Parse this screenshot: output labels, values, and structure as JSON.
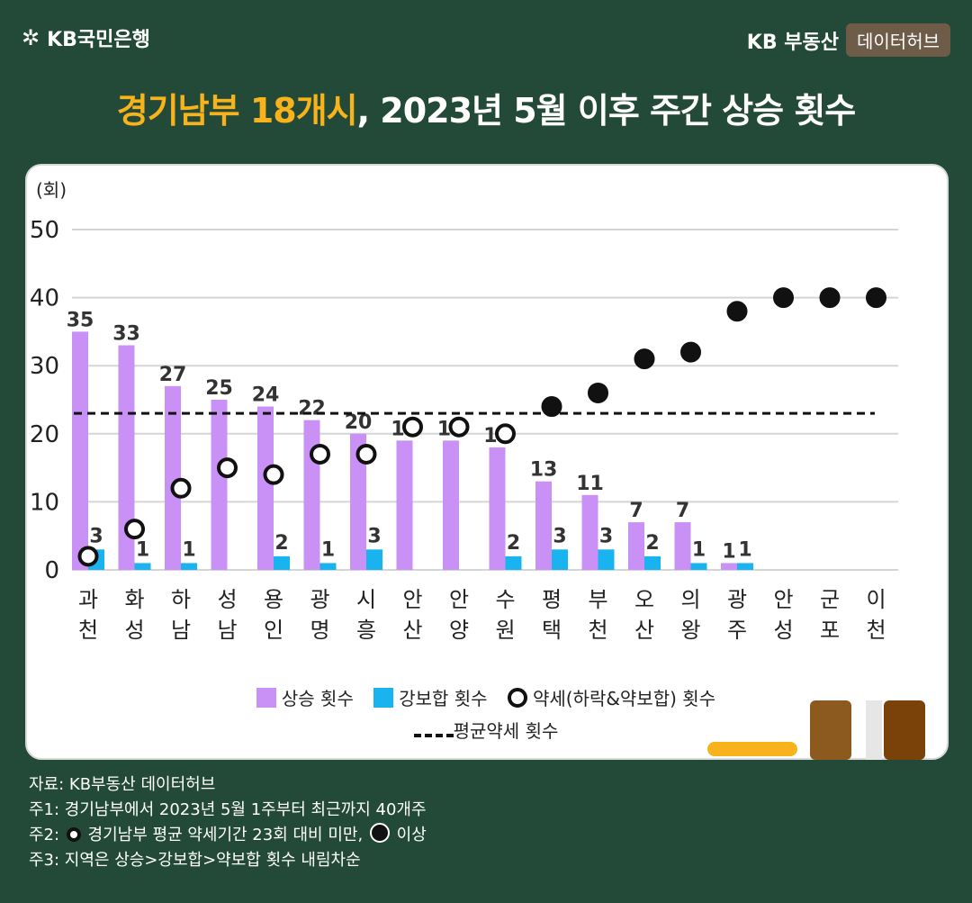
{
  "header": {
    "bank_logo": "KB국민은행",
    "brand_kb": "KB 부동산",
    "brand_hub": "데이터허브",
    "title_highlight": "경기남부 18개시",
    "title_rest": ", 2023년 5월 이후 주간 상승 횟수"
  },
  "colors": {
    "rise": "#c990f6",
    "strong": "#19b4ef",
    "accent": "#f7b21c",
    "background": "#234a38"
  },
  "chart_data": {
    "type": "bar",
    "ylabel": "(회)",
    "ylim": [
      0,
      50
    ],
    "yticks": [
      0,
      10,
      20,
      30,
      40,
      50
    ],
    "categories": [
      "과천",
      "화성",
      "하남",
      "성남",
      "용인",
      "광명",
      "시흥",
      "안산",
      "안양",
      "수원",
      "평택",
      "부천",
      "오산",
      "의왕",
      "광주",
      "안성",
      "군포",
      "이천"
    ],
    "series": [
      {
        "name": "상승 횟수",
        "kind": "bar",
        "values": [
          35,
          33,
          27,
          25,
          24,
          22,
          20,
          19,
          19,
          18,
          13,
          11,
          7,
          7,
          1,
          0,
          0,
          0
        ]
      },
      {
        "name": "강보합 횟수",
        "kind": "bar",
        "values": [
          3,
          1,
          1,
          0,
          2,
          1,
          3,
          0,
          0,
          2,
          3,
          3,
          2,
          1,
          1,
          0,
          0,
          0
        ]
      },
      {
        "name": "약세(하락&약보합) 횟수",
        "kind": "marker",
        "values": [
          2,
          6,
          12,
          15,
          14,
          17,
          17,
          21,
          21,
          20,
          24,
          26,
          31,
          32,
          38,
          40,
          40,
          40
        ]
      }
    ],
    "average_line": {
      "name": "평균약세 횟수",
      "value": 23
    },
    "legend": [
      "상승 횟수",
      "강보합 횟수",
      "약세(하락&약보합) 횟수",
      "평균약세 횟수"
    ],
    "legend_position": "bottom"
  },
  "notes": {
    "source": "자료: KB부동산 데이터허브",
    "note1": "주1: 경기남부에서 2023년 5월 1주부터 최근까지 40개주",
    "note2_prefix": "주2:",
    "note2_mid": "경기남부 평균 약세기간 23회 대비 미만,",
    "note2_end": "이상",
    "note3": "주3: 지역은 상승>강보합>약보합 횟수 내림차순"
  }
}
